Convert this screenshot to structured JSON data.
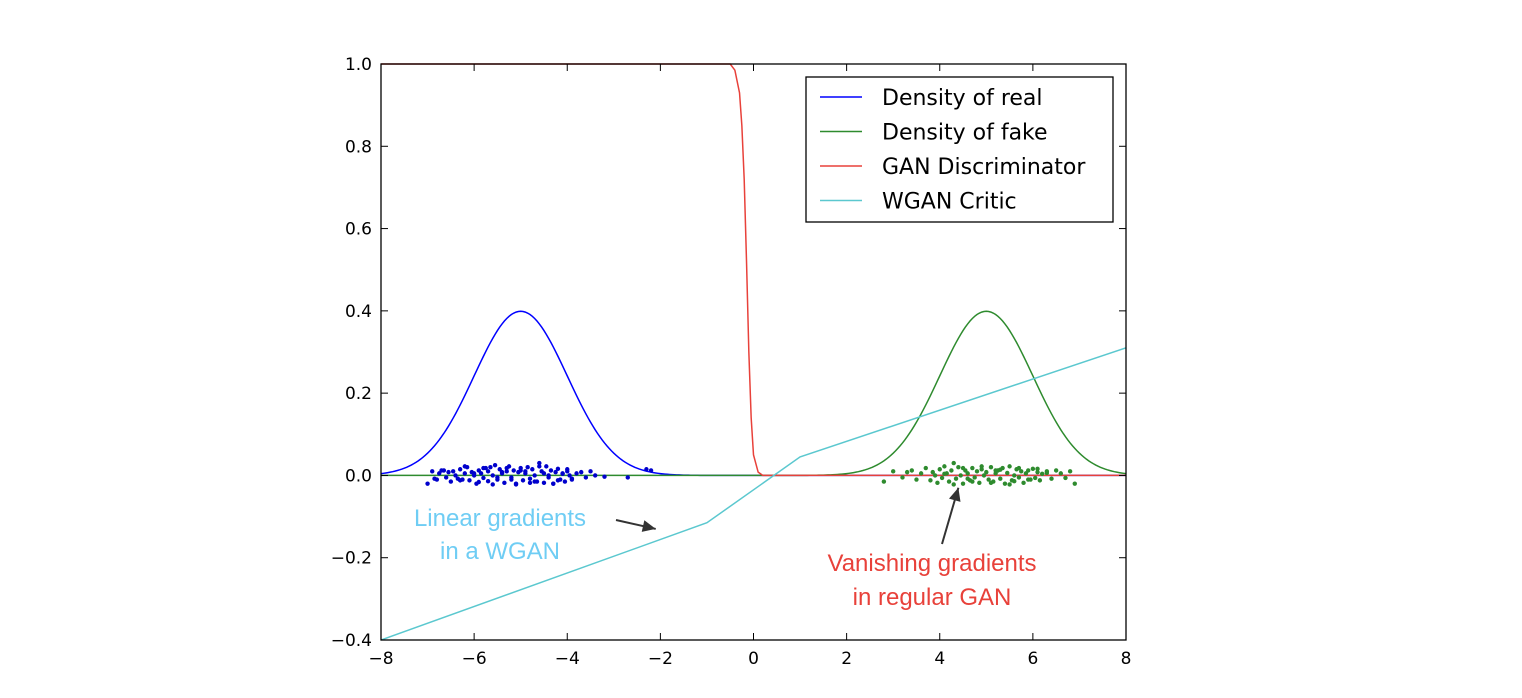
{
  "chart_data": {
    "type": "line",
    "xlim": [
      -8,
      8
    ],
    "ylim": [
      -0.4,
      1.0
    ],
    "xticks": [
      -8,
      -6,
      -4,
      -2,
      0,
      2,
      4,
      6,
      8
    ],
    "xtick_labels": [
      "−8",
      "−6",
      "−4",
      "−2",
      "0",
      "2",
      "4",
      "6",
      "8"
    ],
    "yticks": [
      -0.4,
      -0.2,
      0.0,
      0.2,
      0.4,
      0.6,
      0.8,
      1.0
    ],
    "ytick_labels": [
      "−0.4",
      "−0.2",
      "0.0",
      "0.2",
      "0.4",
      "0.6",
      "0.8",
      "1.0"
    ],
    "grid": false,
    "legend_position": "top-right",
    "series": [
      {
        "name": "Density of real",
        "color": "#0000ff",
        "kind": "gaussian",
        "mean": -5,
        "std": 1
      },
      {
        "name": "Density of fake",
        "color": "#2e8b2e",
        "kind": "gaussian",
        "mean": 5,
        "std": 1
      },
      {
        "name": "GAN Discriminator",
        "color": "#e8413a",
        "kind": "sigmoid",
        "x": [
          -8,
          -0.5,
          -0.4,
          -0.3,
          -0.25,
          -0.2,
          -0.15,
          -0.1,
          -0.05,
          0,
          0.1,
          0.2,
          8
        ],
        "y": [
          1.0,
          1.0,
          0.985,
          0.93,
          0.85,
          0.72,
          0.52,
          0.3,
          0.14,
          0.05,
          0.008,
          0.0,
          0.0
        ]
      },
      {
        "name": "WGAN Critic",
        "color": "#5bc8cf",
        "kind": "piecewise",
        "x": [
          -8,
          -1,
          1,
          8
        ],
        "y": [
          -0.4,
          -0.115,
          0.045,
          0.31
        ]
      }
    ],
    "scatter": [
      {
        "name": "real samples",
        "color": "#0000cc",
        "x": [
          -7.0,
          -6.9,
          -6.8,
          -6.75,
          -6.7,
          -6.6,
          -6.55,
          -6.5,
          -6.45,
          -6.4,
          -6.35,
          -6.3,
          -6.25,
          -6.2,
          -6.15,
          -6.1,
          -6.05,
          -6.0,
          -5.95,
          -5.9,
          -5.85,
          -5.8,
          -5.75,
          -5.7,
          -5.65,
          -5.6,
          -5.55,
          -5.5,
          -5.45,
          -5.4,
          -5.35,
          -5.3,
          -5.25,
          -5.2,
          -5.15,
          -5.1,
          -5.05,
          -5.0,
          -4.95,
          -4.9,
          -4.85,
          -4.8,
          -4.75,
          -4.7,
          -4.65,
          -4.6,
          -4.55,
          -4.5,
          -4.45,
          -4.4,
          -4.35,
          -4.3,
          -4.25,
          -4.2,
          -4.15,
          -4.1,
          -4.05,
          -4.0,
          -3.95,
          -3.9,
          -3.8,
          -3.7,
          -3.6,
          -3.5,
          -3.4,
          -3.2,
          -2.7,
          -2.3,
          -2.2,
          -6.85,
          -6.65,
          -6.3,
          -6.0,
          -5.8,
          -5.6,
          -5.4,
          -5.2,
          -5.0,
          -4.8,
          -4.6,
          -4.4,
          -4.2,
          -4.0,
          -3.9,
          -5.5,
          -5.3,
          -5.1,
          -4.9,
          -4.7,
          -4.5,
          -6.2,
          -5.9,
          -5.7,
          -4.3,
          -4.1
        ],
        "y": [
          -0.02,
          0.01,
          -0.01,
          0.005,
          0.012,
          -0.005,
          0.008,
          -0.015,
          0.01,
          0.0,
          -0.008,
          0.015,
          -0.01,
          0.005,
          0.02,
          -0.012,
          0.008,
          0.0,
          -0.02,
          0.012,
          0.005,
          -0.006,
          0.018,
          -0.014,
          0.02,
          0.0,
          0.025,
          -0.01,
          0.015,
          0.005,
          -0.018,
          0.01,
          0.022,
          -0.005,
          0.012,
          -0.02,
          0.008,
          0.018,
          -0.012,
          0.005,
          0.02,
          -0.008,
          0.015,
          0.0,
          -0.015,
          0.03,
          0.01,
          -0.018,
          0.022,
          -0.005,
          0.012,
          -0.02,
          0.008,
          0.016,
          -0.01,
          0.005,
          -0.015,
          0.01,
          0.0,
          -0.01,
          0.005,
          0.008,
          -0.005,
          0.01,
          0.0,
          -0.003,
          -0.005,
          0.015,
          0.012,
          -0.008,
          0.012,
          -0.012,
          0.005,
          0.018,
          -0.022,
          0.008,
          -0.01,
          0.012,
          -0.018,
          0.022,
          0.0,
          -0.012,
          0.015,
          -0.008,
          -0.005,
          0.018,
          -0.022,
          0.01,
          -0.015,
          0.005,
          0.022,
          -0.016,
          0.01,
          -0.02,
          0.004
        ]
      },
      {
        "name": "fake samples",
        "color": "#2e8b2e",
        "x": [
          2.8,
          3.0,
          3.2,
          3.4,
          3.5,
          3.6,
          3.7,
          3.8,
          3.85,
          3.9,
          3.95,
          4.0,
          4.05,
          4.1,
          4.15,
          4.2,
          4.25,
          4.3,
          4.35,
          4.4,
          4.45,
          4.5,
          4.55,
          4.6,
          4.65,
          4.7,
          4.75,
          4.8,
          4.85,
          4.9,
          4.95,
          5.0,
          5.05,
          5.1,
          5.15,
          5.2,
          5.25,
          5.3,
          5.35,
          5.4,
          5.45,
          5.5,
          5.55,
          5.6,
          5.65,
          5.7,
          5.75,
          5.8,
          5.85,
          5.9,
          5.95,
          6.0,
          6.05,
          6.1,
          6.15,
          6.2,
          6.3,
          6.4,
          6.5,
          6.6,
          6.7,
          6.8,
          6.9,
          3.3,
          4.3,
          4.5,
          4.7,
          4.9,
          5.1,
          5.3,
          5.5,
          5.7,
          5.9,
          6.1,
          4.1,
          4.6,
          5.2,
          5.6,
          6.3
        ],
        "y": [
          -0.015,
          0.01,
          -0.005,
          0.012,
          -0.01,
          0.005,
          0.018,
          -0.012,
          0.008,
          0.0,
          -0.018,
          0.015,
          -0.006,
          0.022,
          0.005,
          -0.015,
          0.012,
          0.03,
          -0.008,
          0.02,
          0.0,
          -0.02,
          0.012,
          0.005,
          -0.012,
          0.018,
          -0.005,
          0.01,
          -0.018,
          0.015,
          0.0,
          0.008,
          -0.01,
          0.02,
          -0.015,
          0.005,
          0.012,
          -0.008,
          0.018,
          -0.02,
          0.006,
          0.022,
          -0.012,
          0.0,
          0.015,
          -0.005,
          0.01,
          -0.018,
          0.005,
          0.012,
          -0.01,
          0.016,
          -0.006,
          0.008,
          -0.012,
          0.004,
          0.01,
          -0.008,
          0.012,
          0.005,
          -0.006,
          0.01,
          -0.02,
          0.008,
          -0.022,
          0.018,
          -0.015,
          0.022,
          -0.018,
          0.014,
          -0.022,
          0.018,
          -0.01,
          0.016,
          0.004,
          -0.008,
          0.012,
          -0.014,
          0.006
        ]
      }
    ],
    "annotations": [
      {
        "lines": [
          "Linear gradients",
          "in a WGAN"
        ],
        "color": "#6fcdf4",
        "arrow_to": [
          -2.1,
          -0.13
        ]
      },
      {
        "lines": [
          "Vanishing gradients",
          "in regular GAN"
        ],
        "color": "#e8413a",
        "arrow_to": [
          4.4,
          -0.03
        ]
      }
    ]
  }
}
